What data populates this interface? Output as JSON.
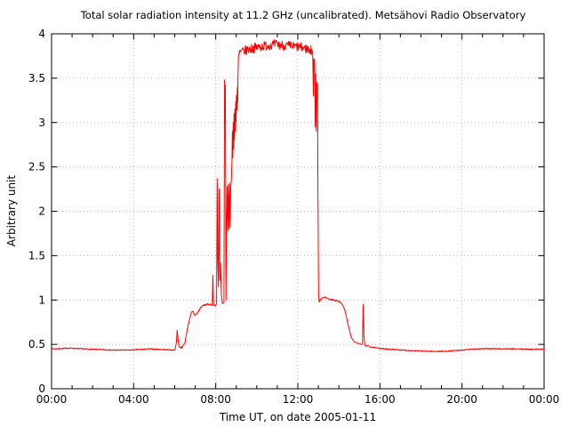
{
  "colors": {
    "background": "#ffffff",
    "frame": "#000000",
    "grid": "#b5b5b5",
    "series": "#ff0000",
    "text": "#000000"
  },
  "chart_data": {
    "type": "line",
    "title": "Total solar radiation intensity at 11.2 GHz (uncalibrated). Metsähovi Radio Observatory",
    "xlabel": "Time UT, on date 2005-01-11",
    "ylabel": "Arbitrary unit",
    "xlim_hours": [
      0,
      24
    ],
    "ylim": [
      0,
      4
    ],
    "grid": "dotted at major ticks",
    "legend_position": "none",
    "x_major_ticks_hours": [
      0,
      4,
      8,
      12,
      16,
      20,
      24
    ],
    "x_tick_labels": [
      "00:00",
      "04:00",
      "08:00",
      "12:00",
      "16:00",
      "20:00",
      "00:00"
    ],
    "x_minor_tick_interval_hours": 1,
    "y_ticks": [
      0,
      0.5,
      1,
      1.5,
      2,
      2.5,
      3,
      3.5,
      4
    ],
    "y_tick_labels": [
      "0",
      "0.5",
      "1",
      "1.5",
      "2",
      "2.5",
      "3",
      "3.5",
      "4"
    ],
    "series": [
      {
        "name": "total-solar-radiation-intensity",
        "color": "#ff0000",
        "anchors_time_value": [
          [
            0,
            0.45
          ],
          [
            0.4,
            0.452
          ],
          [
            0.9,
            0.458
          ],
          [
            1.3,
            0.452
          ],
          [
            1.9,
            0.445
          ],
          [
            2.5,
            0.44
          ],
          [
            3.1,
            0.435
          ],
          [
            3.7,
            0.435
          ],
          [
            4.3,
            0.442
          ],
          [
            4.8,
            0.448
          ],
          [
            5.3,
            0.443
          ],
          [
            5.7,
            0.438
          ],
          [
            5.95,
            0.436
          ],
          [
            6.02,
            0.44
          ],
          [
            6.08,
            0.52
          ],
          [
            6.12,
            0.66
          ],
          [
            6.16,
            0.56
          ],
          [
            6.22,
            0.47
          ],
          [
            6.35,
            0.465
          ],
          [
            6.5,
            0.52
          ],
          [
            6.62,
            0.68
          ],
          [
            6.72,
            0.78
          ],
          [
            6.82,
            0.86
          ],
          [
            6.9,
            0.87
          ],
          [
            6.97,
            0.83
          ],
          [
            7.05,
            0.835
          ],
          [
            7.15,
            0.87
          ],
          [
            7.28,
            0.92
          ],
          [
            7.45,
            0.945
          ],
          [
            7.6,
            0.95
          ],
          [
            7.78,
            0.95
          ],
          [
            7.83,
            0.94
          ],
          [
            7.86,
            1.28
          ],
          [
            7.89,
            0.95
          ],
          [
            7.97,
            0.93
          ],
          [
            8.04,
            0.96
          ],
          [
            8.07,
            2.37
          ],
          [
            8.1,
            1.45
          ],
          [
            8.13,
            1.15
          ],
          [
            8.17,
            2.25
          ],
          [
            8.2,
            1.22
          ],
          [
            8.23,
            1.42
          ],
          [
            8.27,
            1.08
          ],
          [
            8.32,
            0.96
          ],
          [
            8.4,
            0.97
          ],
          [
            8.43,
            3.48
          ],
          [
            8.45,
            3.1
          ],
          [
            8.465,
            3.42
          ],
          [
            8.5,
            1.0
          ],
          [
            8.52,
            1.75
          ],
          [
            8.55,
            2.28
          ],
          [
            8.58,
            1.78
          ],
          [
            8.61,
            2.3
          ],
          [
            8.64,
            1.8
          ],
          [
            8.67,
            2.32
          ],
          [
            8.7,
            1.82
          ],
          [
            8.73,
            2.28
          ],
          [
            8.76,
            2.35
          ],
          [
            8.79,
            2.55
          ],
          [
            8.81,
            2.9
          ],
          [
            8.83,
            2.6
          ],
          [
            8.85,
            3.0
          ],
          [
            8.87,
            2.7
          ],
          [
            8.89,
            3.1
          ],
          [
            8.91,
            2.8
          ],
          [
            8.93,
            3.15
          ],
          [
            8.95,
            2.9
          ],
          [
            8.97,
            3.2
          ],
          [
            8.99,
            3.0
          ],
          [
            9.01,
            3.35
          ],
          [
            9.03,
            3.1
          ],
          [
            9.05,
            3.45
          ],
          [
            9.07,
            3.3
          ],
          [
            9.09,
            3.6
          ],
          [
            9.11,
            3.7
          ],
          [
            9.15,
            3.78
          ],
          [
            9.3,
            3.8
          ],
          [
            9.7,
            3.83
          ],
          [
            10.1,
            3.85
          ],
          [
            10.5,
            3.87
          ],
          [
            10.9,
            3.88
          ],
          [
            11.3,
            3.87
          ],
          [
            11.7,
            3.86
          ],
          [
            12.1,
            3.85
          ],
          [
            12.45,
            3.83
          ],
          [
            12.68,
            3.81
          ],
          [
            12.72,
            3.8
          ],
          [
            12.76,
            3.3
          ],
          [
            12.78,
            3.72
          ],
          [
            12.82,
            3.7
          ],
          [
            12.85,
            2.95
          ],
          [
            12.87,
            3.55
          ],
          [
            12.9,
            2.9
          ],
          [
            12.93,
            3.45
          ],
          [
            12.96,
            3.4
          ],
          [
            12.98,
            2.2
          ],
          [
            13.01,
            1.06
          ],
          [
            13.04,
            0.98
          ],
          [
            13.1,
            1.0
          ],
          [
            13.2,
            1.03
          ],
          [
            13.35,
            1.03
          ],
          [
            13.5,
            1.01
          ],
          [
            13.7,
            1.0
          ],
          [
            13.95,
            0.99
          ],
          [
            14.15,
            0.96
          ],
          [
            14.3,
            0.88
          ],
          [
            14.45,
            0.72
          ],
          [
            14.6,
            0.58
          ],
          [
            14.75,
            0.53
          ],
          [
            14.95,
            0.51
          ],
          [
            15.1,
            0.5
          ],
          [
            15.15,
            0.5
          ],
          [
            15.18,
            0.95
          ],
          [
            15.22,
            0.6
          ],
          [
            15.26,
            0.49
          ],
          [
            15.5,
            0.475
          ],
          [
            15.8,
            0.46
          ],
          [
            16.2,
            0.45
          ],
          [
            16.8,
            0.44
          ],
          [
            17.5,
            0.43
          ],
          [
            18.2,
            0.423
          ],
          [
            18.8,
            0.42
          ],
          [
            19.4,
            0.425
          ],
          [
            20,
            0.435
          ],
          [
            20.6,
            0.448
          ],
          [
            21.2,
            0.452
          ],
          [
            22,
            0.45
          ],
          [
            22.8,
            0.448
          ],
          [
            23.4,
            0.445
          ],
          [
            24,
            0.447
          ]
        ],
        "noise_segments_t0_t1_amp": [
          [
            0,
            5.95,
            0.006
          ],
          [
            6.3,
            7.8,
            0.009
          ],
          [
            8.97,
            9.12,
            0.1
          ],
          [
            9.12,
            12.7,
            0.055
          ],
          [
            13.05,
            14.1,
            0.008
          ],
          [
            15.3,
            24,
            0.006
          ]
        ]
      }
    ]
  }
}
